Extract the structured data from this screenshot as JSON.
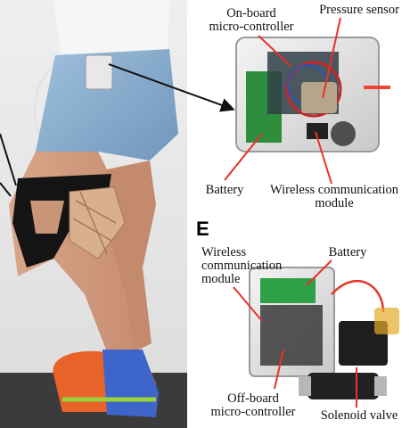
{
  "panel_letter": "E",
  "top_labels": {
    "onboard_controller": [
      "On-board",
      "micro-controller"
    ],
    "pressure_sensor": "Pressure sensor",
    "battery": "Battery",
    "wireless_module": [
      "Wireless communication",
      "module"
    ]
  },
  "bottom_labels": {
    "wireless_module": [
      "Wireless",
      "communication",
      "module"
    ],
    "battery": "Battery",
    "offboard_controller": [
      "Off-board",
      "micro-controller"
    ],
    "solenoid_valve": "Solenoid valve"
  },
  "colors": {
    "callout_line": "#e8322a",
    "arrow": "#111111"
  }
}
